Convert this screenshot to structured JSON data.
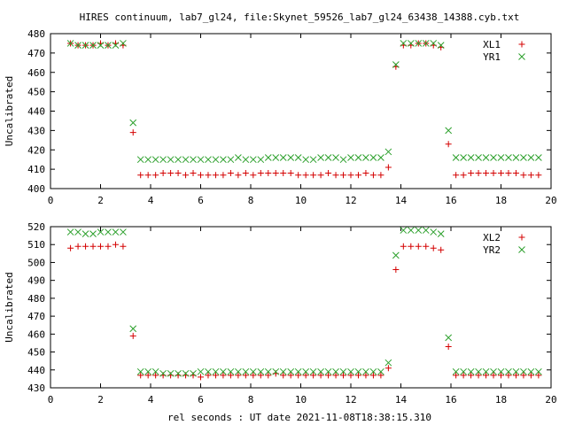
{
  "title": "HIRES continuum, lab7_gl24, file:Skynet_59526_lab7_gl24_63438_14388.cyb.txt",
  "xlabel": "rel seconds : UT date 2021-11-08T18:38:15.310",
  "colors": {
    "red": "#d40000",
    "green": "#2ca02c"
  },
  "chart_data": [
    {
      "type": "scatter",
      "ylabel": "Uncalibrated",
      "xlim": [
        0,
        20
      ],
      "ylim": [
        400,
        480
      ],
      "xticks": [
        0,
        2,
        4,
        6,
        8,
        10,
        12,
        14,
        16,
        18,
        20
      ],
      "yticks": [
        400,
        410,
        420,
        430,
        440,
        450,
        460,
        470,
        480
      ],
      "legend": "top-right",
      "series": [
        {
          "name": "XL1",
          "marker": "plus",
          "color": "#d40000",
          "x": [
            0.8,
            1.1,
            1.4,
            1.7,
            2.0,
            2.3,
            2.6,
            2.9,
            3.3,
            3.6,
            3.9,
            4.2,
            4.5,
            4.8,
            5.1,
            5.4,
            5.7,
            6.0,
            6.3,
            6.6,
            6.9,
            7.2,
            7.5,
            7.8,
            8.1,
            8.4,
            8.7,
            9.0,
            9.3,
            9.6,
            9.9,
            10.2,
            10.5,
            10.8,
            11.1,
            11.4,
            11.7,
            12.0,
            12.3,
            12.6,
            12.9,
            13.2,
            13.5,
            13.8,
            14.1,
            14.4,
            14.7,
            15.0,
            15.3,
            15.6,
            15.9,
            16.2,
            16.5,
            16.8,
            17.1,
            17.4,
            17.7,
            18.0,
            18.3,
            18.6,
            18.9,
            19.2,
            19.5
          ],
          "y": [
            475,
            474,
            474,
            474,
            475,
            474,
            475,
            474,
            429,
            407,
            407,
            407,
            408,
            408,
            408,
            407,
            408,
            407,
            407,
            407,
            407,
            408,
            407,
            408,
            407,
            408,
            408,
            408,
            408,
            408,
            407,
            407,
            407,
            407,
            408,
            407,
            407,
            407,
            407,
            408,
            407,
            407,
            411,
            463,
            474,
            474,
            475,
            475,
            474,
            473,
            423,
            407,
            407,
            408,
            408,
            408,
            408,
            408,
            408,
            408,
            407,
            407,
            407
          ]
        },
        {
          "name": "YR1",
          "marker": "cross",
          "color": "#2ca02c",
          "x": [
            0.8,
            1.1,
            1.4,
            1.7,
            2.0,
            2.3,
            2.6,
            2.9,
            3.3,
            3.6,
            3.9,
            4.2,
            4.5,
            4.8,
            5.1,
            5.4,
            5.7,
            6.0,
            6.3,
            6.6,
            6.9,
            7.2,
            7.5,
            7.8,
            8.1,
            8.4,
            8.7,
            9.0,
            9.3,
            9.6,
            9.9,
            10.2,
            10.5,
            10.8,
            11.1,
            11.4,
            11.7,
            12.0,
            12.3,
            12.6,
            12.9,
            13.2,
            13.5,
            13.8,
            14.1,
            14.4,
            14.7,
            15.0,
            15.3,
            15.6,
            15.9,
            16.2,
            16.5,
            16.8,
            17.1,
            17.4,
            17.7,
            18.0,
            18.3,
            18.6,
            18.9,
            19.2,
            19.5
          ],
          "y": [
            475,
            474,
            474,
            474,
            474,
            474,
            474,
            475,
            434,
            415,
            415,
            415,
            415,
            415,
            415,
            415,
            415,
            415,
            415,
            415,
            415,
            415,
            416,
            415,
            415,
            415,
            416,
            416,
            416,
            416,
            416,
            415,
            415,
            416,
            416,
            416,
            415,
            416,
            416,
            416,
            416,
            416,
            419,
            464,
            475,
            475,
            475,
            475,
            475,
            474,
            430,
            416,
            416,
            416,
            416,
            416,
            416,
            416,
            416,
            416,
            416,
            416,
            416
          ]
        }
      ]
    },
    {
      "type": "scatter",
      "ylabel": "Uncalibrated",
      "xlim": [
        0,
        20
      ],
      "ylim": [
        430,
        520
      ],
      "xticks": [
        0,
        2,
        4,
        6,
        8,
        10,
        12,
        14,
        16,
        18,
        20
      ],
      "yticks": [
        430,
        440,
        450,
        460,
        470,
        480,
        490,
        500,
        510,
        520
      ],
      "legend": "top-right",
      "series": [
        {
          "name": "XL2",
          "marker": "plus",
          "color": "#d40000",
          "x": [
            0.8,
            1.1,
            1.4,
            1.7,
            2.0,
            2.3,
            2.6,
            2.9,
            3.3,
            3.6,
            3.9,
            4.2,
            4.5,
            4.8,
            5.1,
            5.4,
            5.7,
            6.0,
            6.3,
            6.6,
            6.9,
            7.2,
            7.5,
            7.8,
            8.1,
            8.4,
            8.7,
            9.0,
            9.3,
            9.6,
            9.9,
            10.2,
            10.5,
            10.8,
            11.1,
            11.4,
            11.7,
            12.0,
            12.3,
            12.6,
            12.9,
            13.2,
            13.5,
            13.8,
            14.1,
            14.4,
            14.7,
            15.0,
            15.3,
            15.6,
            15.9,
            16.2,
            16.5,
            16.8,
            17.1,
            17.4,
            17.7,
            18.0,
            18.3,
            18.6,
            18.9,
            19.2,
            19.5
          ],
          "y": [
            508,
            509,
            509,
            509,
            509,
            509,
            510,
            509,
            459,
            437,
            437,
            437,
            437,
            437,
            437,
            437,
            437,
            436,
            437,
            437,
            437,
            437,
            437,
            437,
            437,
            437,
            437,
            438,
            437,
            437,
            437,
            437,
            437,
            437,
            437,
            437,
            437,
            437,
            437,
            437,
            437,
            437,
            441,
            496,
            509,
            509,
            509,
            509,
            508,
            507,
            453,
            437,
            437,
            437,
            437,
            437,
            437,
            437,
            437,
            437,
            437,
            437,
            437
          ]
        },
        {
          "name": "YR2",
          "marker": "cross",
          "color": "#2ca02c",
          "x": [
            0.8,
            1.1,
            1.4,
            1.7,
            2.0,
            2.3,
            2.6,
            2.9,
            3.3,
            3.6,
            3.9,
            4.2,
            4.5,
            4.8,
            5.1,
            5.4,
            5.7,
            6.0,
            6.3,
            6.6,
            6.9,
            7.2,
            7.5,
            7.8,
            8.1,
            8.4,
            8.7,
            9.0,
            9.3,
            9.6,
            9.9,
            10.2,
            10.5,
            10.8,
            11.1,
            11.4,
            11.7,
            12.0,
            12.3,
            12.6,
            12.9,
            13.2,
            13.5,
            13.8,
            14.1,
            14.4,
            14.7,
            15.0,
            15.3,
            15.6,
            15.9,
            16.2,
            16.5,
            16.8,
            17.1,
            17.4,
            17.7,
            18.0,
            18.3,
            18.6,
            18.9,
            19.2,
            19.5
          ],
          "y": [
            517,
            517,
            516,
            516,
            517,
            517,
            517,
            517,
            463,
            439,
            439,
            439,
            438,
            438,
            438,
            438,
            438,
            439,
            439,
            439,
            439,
            439,
            439,
            439,
            439,
            439,
            439,
            439,
            439,
            439,
            439,
            439,
            439,
            439,
            439,
            439,
            439,
            439,
            439,
            439,
            439,
            439,
            444,
            504,
            518,
            518,
            518,
            518,
            517,
            516,
            458,
            439,
            439,
            439,
            439,
            439,
            439,
            439,
            439,
            439,
            439,
            439,
            439
          ]
        }
      ]
    }
  ]
}
